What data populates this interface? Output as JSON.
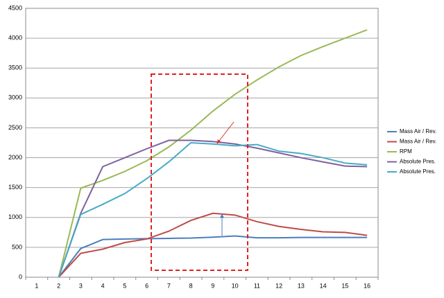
{
  "chart_data": {
    "type": "line",
    "categories": [
      "1",
      "2",
      "3",
      "4",
      "5",
      "6",
      "7",
      "8",
      "9",
      "10",
      "11",
      "12",
      "13",
      "14",
      "15",
      "16"
    ],
    "series": [
      {
        "name": "Mass Air / Rev.",
        "color": "#4a7ebb",
        "values": [
          null,
          0,
          480,
          630,
          640,
          645,
          650,
          655,
          670,
          690,
          660,
          660,
          665,
          665,
          665,
          665
        ]
      },
      {
        "name": "Mass Air / Rev.",
        "color": "#be4b48",
        "values": [
          null,
          0,
          400,
          470,
          580,
          640,
          770,
          950,
          1070,
          1040,
          930,
          850,
          800,
          760,
          750,
          700
        ]
      },
      {
        "name": "RPM",
        "color": "#98b954",
        "values": [
          null,
          0,
          1490,
          1620,
          1770,
          1950,
          2180,
          2460,
          2780,
          3060,
          3300,
          3520,
          3710,
          3860,
          4000,
          4140
        ]
      },
      {
        "name": "Absolute Pres.",
        "color": "#7d60a0",
        "values": [
          null,
          0,
          1070,
          1850,
          2000,
          2150,
          2290,
          2290,
          2270,
          2230,
          2160,
          2080,
          2000,
          1930,
          1860,
          1850
        ]
      },
      {
        "name": "Absolute Pres.",
        "color": "#46aac5",
        "values": [
          null,
          0,
          1050,
          1220,
          1400,
          1650,
          1930,
          2250,
          2230,
          2200,
          2220,
          2110,
          2070,
          2000,
          1910,
          1880
        ]
      }
    ],
    "ylim": [
      0,
      4500
    ],
    "yticks": [
      0,
      500,
      1000,
      1500,
      2000,
      2500,
      3000,
      3500,
      4000,
      4500
    ],
    "grid": true,
    "legend": "right"
  }
}
